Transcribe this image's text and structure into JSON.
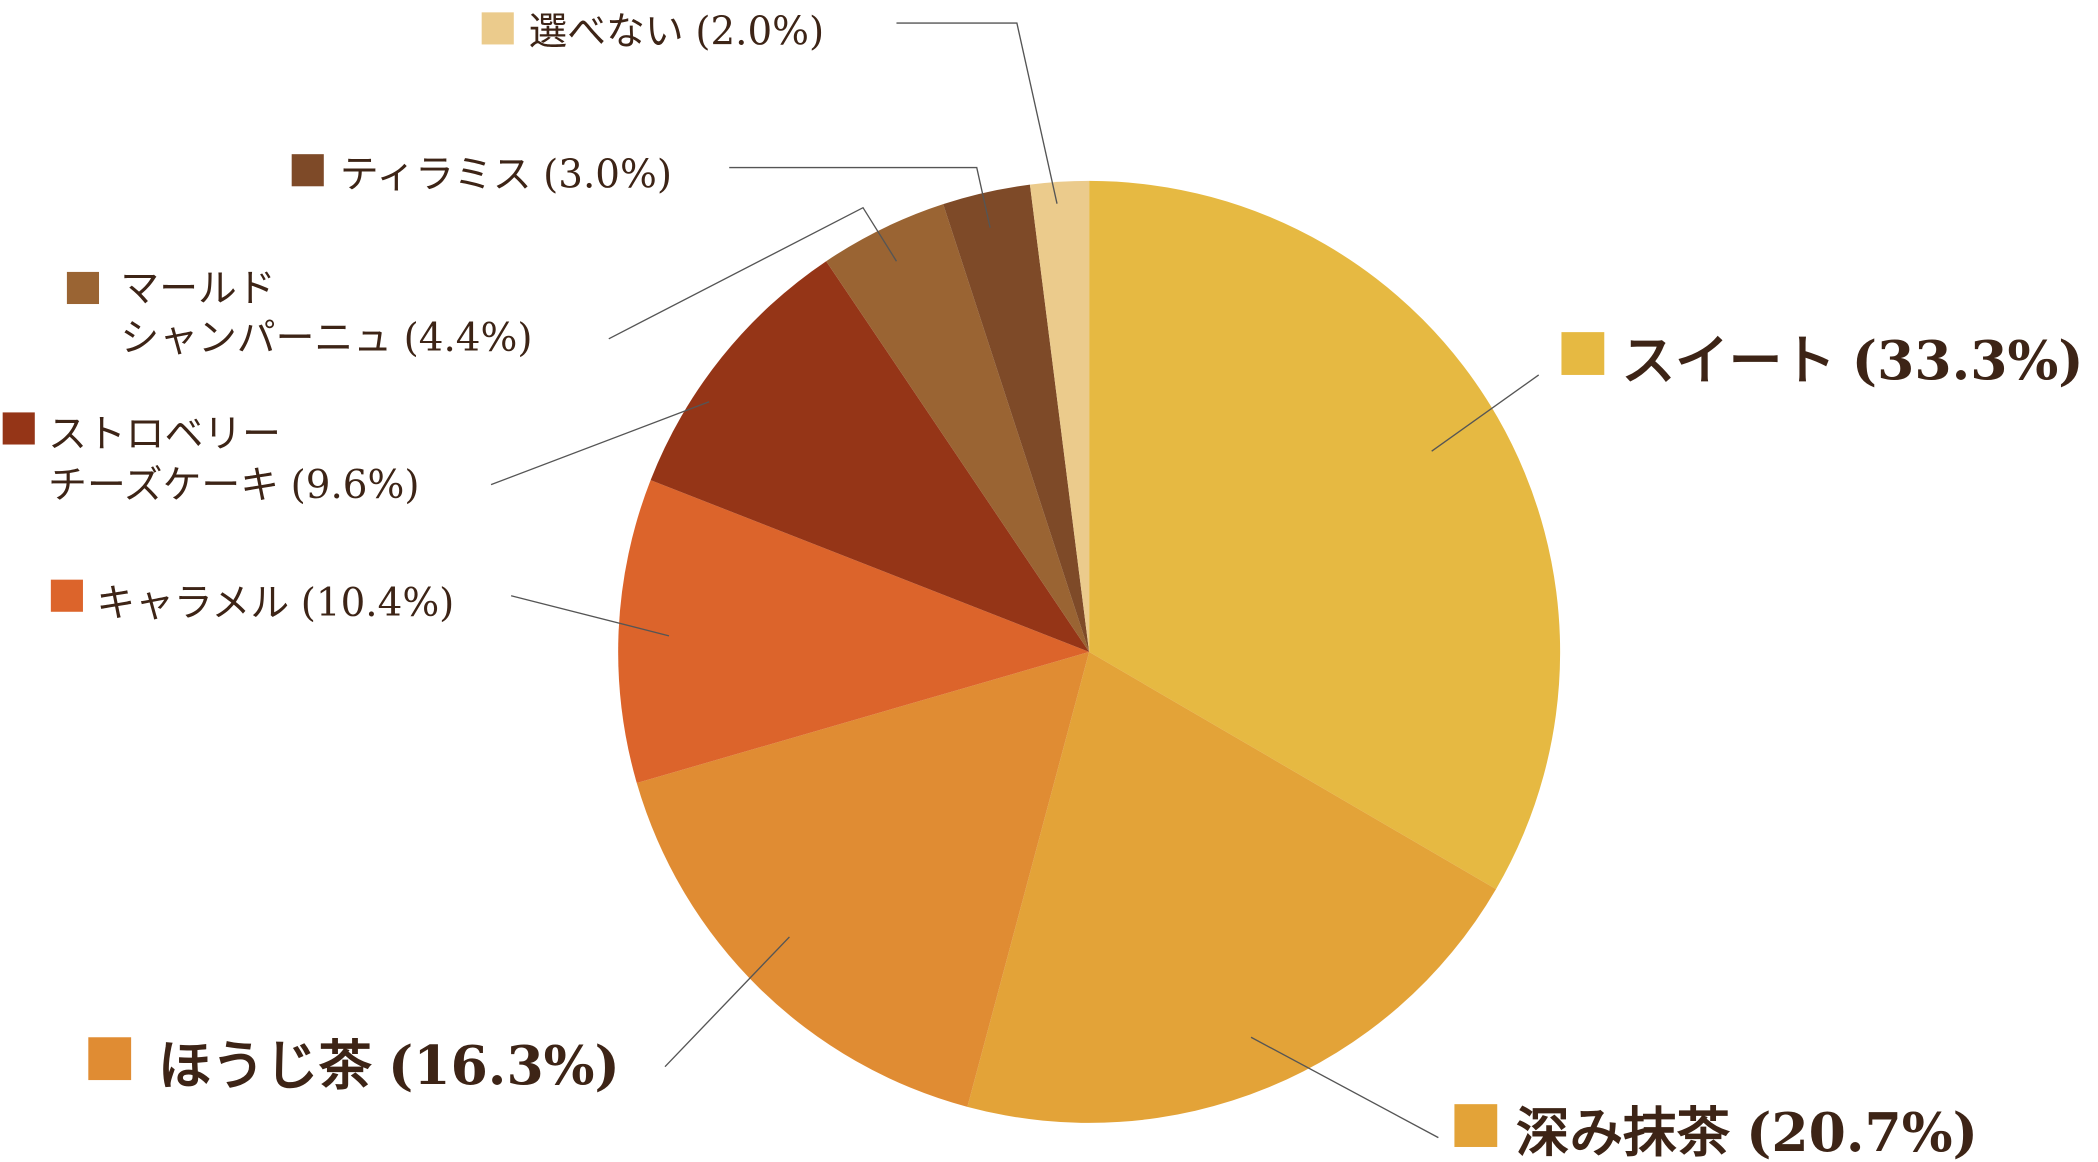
{
  "chart_data": {
    "type": "pie",
    "categories": [
      [
        "スイート"
      ],
      [
        "深み抹茶"
      ],
      [
        "ほうじ茶"
      ],
      [
        "キャラメル"
      ],
      [
        "ストロベリー",
        "チーズケーキ"
      ],
      [
        "マールド",
        "シャンパーニュ"
      ],
      [
        "ティラミス"
      ],
      [
        "選べない"
      ]
    ],
    "values": [
      33.3,
      20.7,
      16.3,
      10.4,
      9.6,
      4.4,
      3.0,
      2.0
    ],
    "value_labels": [
      "(33.3%)",
      "(20.7%)",
      "(16.3%)",
      "(10.4%)",
      "(9.6%)",
      "(4.4%)",
      "(3.0%)",
      "(2.0%)"
    ],
    "colors": [
      "#e6b942",
      "#e3a338",
      "#e08c33",
      "#dc642b",
      "#953517",
      "#9a6433",
      "#7e4a28",
      "#ebcb8c"
    ]
  }
}
